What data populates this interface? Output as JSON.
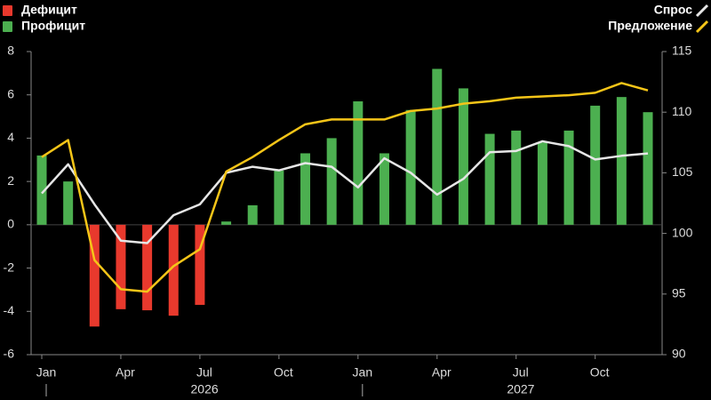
{
  "chart_data": {
    "type": "bar-line",
    "categories": [
      "Jan",
      null,
      null,
      "Apr",
      null,
      null,
      "Jul",
      null,
      null,
      "Oct",
      null,
      null,
      "Jan",
      null,
      null,
      "Apr",
      null,
      null,
      "Jul",
      null,
      null,
      "Oct",
      null,
      null
    ],
    "year_labels": [
      "2026",
      "2027"
    ],
    "series": [
      {
        "name": "Дефицит",
        "color": "#e8392d",
        "type": "bar",
        "values": [
          null,
          null,
          -4.7,
          -3.9,
          -3.95,
          -4.2,
          -3.7,
          null,
          null,
          null,
          null,
          null,
          null,
          null,
          null,
          null,
          null,
          null,
          null,
          null,
          null,
          null,
          null,
          null
        ]
      },
      {
        "name": "Профицит",
        "color": "#4caf50",
        "type": "bar",
        "values": [
          3.2,
          2.0,
          null,
          null,
          null,
          null,
          null,
          0.15,
          0.9,
          2.5,
          3.3,
          4.0,
          5.7,
          3.3,
          5.3,
          7.2,
          6.3,
          4.2,
          4.35,
          3.8,
          4.35,
          5.5,
          5.9,
          5.2
        ]
      },
      {
        "name": "Спрос",
        "color": "#e6e6e6",
        "type": "line",
        "axis": "y2",
        "values": [
          103.3,
          105.7,
          102.4,
          99.4,
          99.2,
          101.5,
          102.4,
          105.0,
          105.5,
          105.2,
          105.8,
          105.5,
          103.8,
          106.2,
          105.0,
          103.2,
          104.5,
          106.7,
          106.8,
          107.6,
          107.2,
          106.1,
          106.4,
          106.6
        ]
      },
      {
        "name": "Предложение",
        "color": "#f5c518",
        "type": "line",
        "axis": "y2",
        "values": [
          106.3,
          107.7,
          97.8,
          95.4,
          95.2,
          97.3,
          98.7,
          105.1,
          106.3,
          107.7,
          109.0,
          109.4,
          109.4,
          109.4,
          110.1,
          110.3,
          110.7,
          110.9,
          111.2,
          111.3,
          111.4,
          111.6,
          112.4,
          111.8
        ]
      }
    ],
    "ylim": [
      -6,
      8
    ],
    "yticks": [
      -6,
      -4,
      -2,
      0,
      2,
      4,
      6,
      8
    ],
    "y2lim": [
      90,
      115
    ],
    "y2ticks": [
      90,
      95,
      100,
      105,
      110,
      115
    ]
  }
}
